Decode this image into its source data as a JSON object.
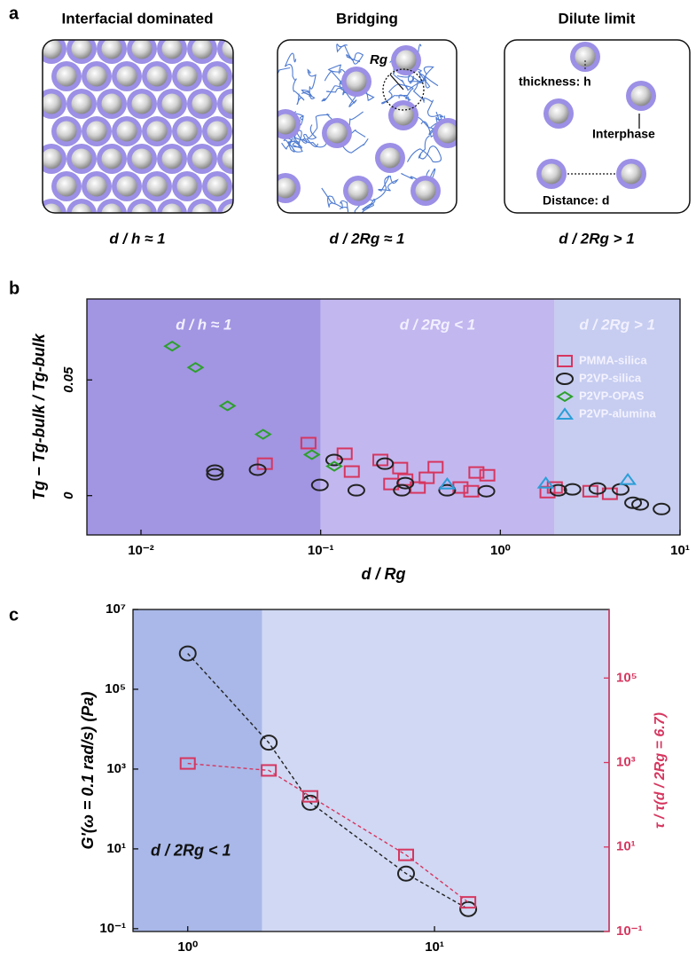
{
  "panel_labels": [
    "a",
    "b",
    "c"
  ],
  "diagram": {
    "panels": [
      {
        "title": "Interfacial dominated",
        "caption": "d / h ≈ 1"
      },
      {
        "title": "Bridging",
        "caption": "d / 2Rg ≈ 1",
        "annotations": [
          "Rg"
        ]
      },
      {
        "title": "Dilute limit",
        "caption": "d / 2Rg > 1",
        "annotations": [
          "thickness: h",
          "Interphase",
          "Distance: d"
        ]
      }
    ]
  },
  "chart_data": [
    {
      "type": "scatter",
      "x_label": "d / Rg",
      "y_label": "Tg − Tg-bulk / Tg-bulk",
      "xscale": "log",
      "xlim": [
        0.005,
        10
      ],
      "xticks": [
        {
          "value": 0.01,
          "label": "10⁻²"
        },
        {
          "value": 0.1,
          "label": "10⁻¹"
        },
        {
          "value": 1,
          "label": "10⁰"
        },
        {
          "value": 10,
          "label": "10¹"
        }
      ],
      "ylim": [
        -0.017,
        0.085
      ],
      "yticks": [
        0,
        0.05
      ],
      "legend": "upper right",
      "regions": [
        {
          "label": "d / h ≈ 1",
          "range": [
            0.005,
            0.1
          ],
          "color": "#a295e2"
        },
        {
          "label": "d / 2Rg < 1",
          "range": [
            0.1,
            2
          ],
          "color": "#c3b7ef"
        },
        {
          "label": "d / 2Rg > 1",
          "range": [
            2,
            10
          ],
          "color": "#c6cdf0"
        }
      ],
      "series": [
        {
          "name": "PMMA-silica",
          "color": "#d6365f",
          "marker": "square",
          "x": [
            0.0489,
            0.0855,
            0.136,
            0.149,
            0.215,
            0.247,
            0.277,
            0.296,
            0.347,
            0.389,
            0.436,
            0.6,
            0.689,
            0.736,
            0.846,
            1.83,
            2.01,
            3.17,
            4.07
          ],
          "values": [
            0.0138,
            0.0227,
            0.0181,
            0.0104,
            0.0154,
            0.005,
            0.0119,
            0.0069,
            0.0035,
            0.0077,
            0.0123,
            0.0035,
            0.0019,
            0.01,
            0.0088,
            0.0015,
            0.0035,
            0.0019,
            0.0008
          ]
        },
        {
          "name": "P2VP-silica",
          "color": "#222222",
          "marker": "circle",
          "x": [
            0.0258,
            0.0258,
            0.0446,
            0.099,
            0.119,
            0.158,
            0.228,
            0.283,
            0.296,
            0.506,
            0.836,
            2.1,
            2.52,
            3.47,
            4.67,
            5.48,
            6.0,
            7.89
          ],
          "values": [
            0.0092,
            0.0108,
            0.0112,
            0.0046,
            0.0154,
            0.0023,
            0.0138,
            0.0023,
            0.0054,
            0.0023,
            0.0019,
            0.0023,
            0.0027,
            0.0031,
            0.0027,
            -0.0031,
            -0.0038,
            -0.0058
          ]
        },
        {
          "name": "P2VP-OPAS",
          "color": "#2ca02c",
          "marker": "diamond",
          "x": [
            0.0149,
            0.0201,
            0.0303,
            0.0478,
            0.0893,
            0.119
          ],
          "values": [
            0.0646,
            0.0554,
            0.0388,
            0.0265,
            0.0177,
            0.0127
          ]
        },
        {
          "name": "P2VP-alumina",
          "color": "#2b9ed8",
          "marker": "triangle",
          "x": [
            0.506,
            1.79,
            5.12
          ],
          "values": [
            0.005,
            0.0054,
            0.0069
          ]
        }
      ]
    },
    {
      "type": "line",
      "x_label": "d / Rg",
      "y_label": "G'(ω = 0.1 rad/s) (Pa)",
      "y2_label": "τ / τ(d / 2Rg = 6.7)",
      "xscale": "log",
      "yscale": "log",
      "y2scale": "log",
      "xlim": [
        0.6,
        51
      ],
      "xticks": [
        {
          "value": 1,
          "label": "10⁰"
        },
        {
          "value": 10,
          "label": "10¹"
        }
      ],
      "ylim": [
        0.085,
        10000000
      ],
      "yticks": [
        {
          "value": 0.1,
          "label": "10⁻¹"
        },
        {
          "value": 10,
          "label": "10¹"
        },
        {
          "value": 1000,
          "label": "10³"
        },
        {
          "value": 100000,
          "label": "10⁵"
        },
        {
          "value": 10000000,
          "label": "10⁷"
        }
      ],
      "y2lim": [
        0.1,
        4200000
      ],
      "y2ticks": [
        {
          "value": 0.1,
          "label": "10⁻¹"
        },
        {
          "value": 10,
          "label": "10¹"
        },
        {
          "value": 1000,
          "label": "10³"
        },
        {
          "value": 100000,
          "label": "10⁵"
        }
      ],
      "y2_color": "#d6365f",
      "regions": [
        {
          "label": "d / 2Rg < 1",
          "range": [
            0.6,
            2
          ],
          "color": "#a9b8e8"
        },
        {
          "range": [
            2,
            51
          ],
          "color": "#d0d8f3"
        }
      ],
      "series": [
        {
          "color": "#222222",
          "marker": "circle",
          "x": [
            1.0,
            2.13,
            3.14,
            7.67,
            13.7
          ],
          "values": [
            790000,
            4600,
            143,
            2.4,
            0.31
          ]
        },
        {
          "color": "#d6365f",
          "marker": "square",
          "axis": "y2",
          "x": [
            1.0,
            2.13,
            3.14,
            7.67,
            13.7
          ],
          "values": [
            950,
            650,
            158,
            6.5,
            0.49
          ]
        }
      ]
    }
  ]
}
